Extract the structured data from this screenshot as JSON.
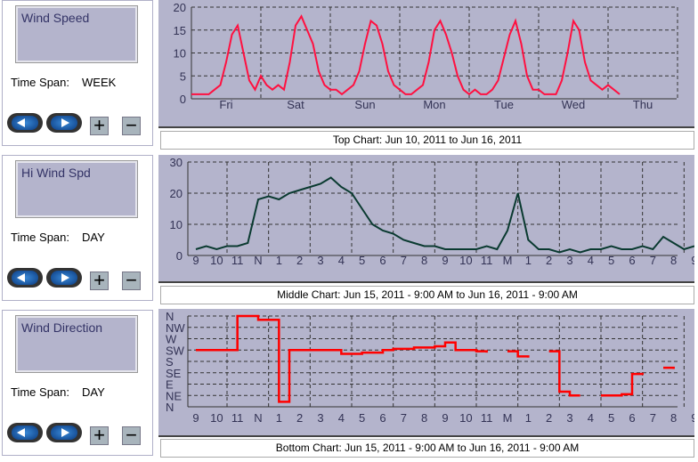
{
  "panels": [
    {
      "title": "Wind Speed",
      "span_label": "Time Span:",
      "span_value": "WEEK"
    },
    {
      "title": "Hi Wind Spd",
      "span_label": "Time Span:",
      "span_value": "DAY"
    },
    {
      "title": "Wind Direction",
      "span_label": "Time Span:",
      "span_value": "DAY"
    }
  ],
  "buttons": {
    "plus": "+",
    "minus": "−"
  },
  "captions": [
    "Top Chart:  Jun 10, 2011  to  Jun 16, 2011",
    "Middle Chart:  Jun 15, 2011 - 9:00 AM  to  Jun 16, 2011 - 9:00 AM",
    "Bottom Chart:  Jun 15, 2011 - 9:00 AM  to  Jun 16, 2011 - 9:00 AM"
  ],
  "colors": {
    "speed": "#ff1040",
    "hi": "#0a3a30",
    "dir": "#ff0000"
  },
  "chart_data": [
    {
      "type": "line",
      "title": "Wind Speed",
      "x_unit": "2-hour steps from Fri 00:00",
      "yticks": [
        "0",
        "5",
        "10",
        "15",
        "20"
      ],
      "ylim": [
        0,
        20
      ],
      "xticks": [
        "Fri",
        "Sat",
        "Sun",
        "Mon",
        "Tue",
        "Wed",
        "Thu"
      ],
      "values": [
        1,
        1,
        1,
        1,
        2,
        3,
        8,
        14,
        16,
        10,
        4,
        2,
        5,
        3,
        2,
        3,
        2,
        8,
        16,
        18,
        15,
        12,
        6,
        3,
        2,
        2,
        1,
        2,
        3,
        6,
        12,
        17,
        16,
        12,
        6,
        3,
        2,
        1,
        1,
        2,
        3,
        8,
        15,
        17,
        14,
        10,
        5,
        2,
        1,
        2,
        1,
        1,
        2,
        4,
        9,
        14,
        17,
        12,
        5,
        2,
        2,
        1,
        1,
        1,
        4,
        10,
        17,
        15,
        8,
        4,
        3,
        2,
        3,
        2,
        1
      ]
    },
    {
      "type": "line",
      "title": "Hi Wind Spd",
      "x_unit": "half-hour steps from 9:00 AM",
      "yticks": [
        "0",
        "10",
        "20",
        "30"
      ],
      "ylim": [
        0,
        30
      ],
      "xticks": [
        "9",
        "10",
        "11",
        "N",
        "1",
        "2",
        "3",
        "4",
        "5",
        "6",
        "7",
        "8",
        "9",
        "10",
        "11",
        "M",
        "1",
        "2",
        "3",
        "4",
        "5",
        "6",
        "7",
        "8",
        "9"
      ],
      "values": [
        2,
        3,
        2,
        3,
        3,
        4,
        18,
        19,
        18,
        20,
        21,
        22,
        23,
        25,
        22,
        20,
        15,
        10,
        8,
        7,
        5,
        4,
        3,
        3,
        2,
        2,
        2,
        2,
        3,
        2,
        8,
        20,
        5,
        2,
        2,
        1,
        2,
        1,
        2,
        2,
        3,
        2,
        2,
        3,
        2,
        6,
        4,
        2,
        3
      ]
    },
    {
      "type": "line",
      "title": "Wind Direction",
      "x_unit": "half-hour steps from 9:00 AM",
      "yticks": [
        "N",
        "NW",
        "W",
        "SW",
        "S",
        "SE",
        "E",
        "NE",
        "N"
      ],
      "ylim": [
        0,
        360
      ],
      "xticks": [
        "9",
        "10",
        "11",
        "N",
        "1",
        "2",
        "3",
        "4",
        "5",
        "6",
        "7",
        "8",
        "9",
        "10",
        "11",
        "M",
        "1",
        "2",
        "3",
        "4",
        "5",
        "6",
        "7",
        "8",
        "9"
      ],
      "values": [
        225,
        225,
        225,
        225,
        360,
        360,
        345,
        345,
        20,
        225,
        225,
        225,
        225,
        225,
        210,
        210,
        215,
        215,
        225,
        230,
        230,
        235,
        235,
        240,
        255,
        225,
        225,
        220,
        215,
        null,
        220,
        200,
        195,
        null,
        220,
        60,
        45,
        45,
        null,
        45,
        45,
        50,
        130,
        135,
        null,
        155,
        150,
        null,
        225
      ]
    }
  ]
}
